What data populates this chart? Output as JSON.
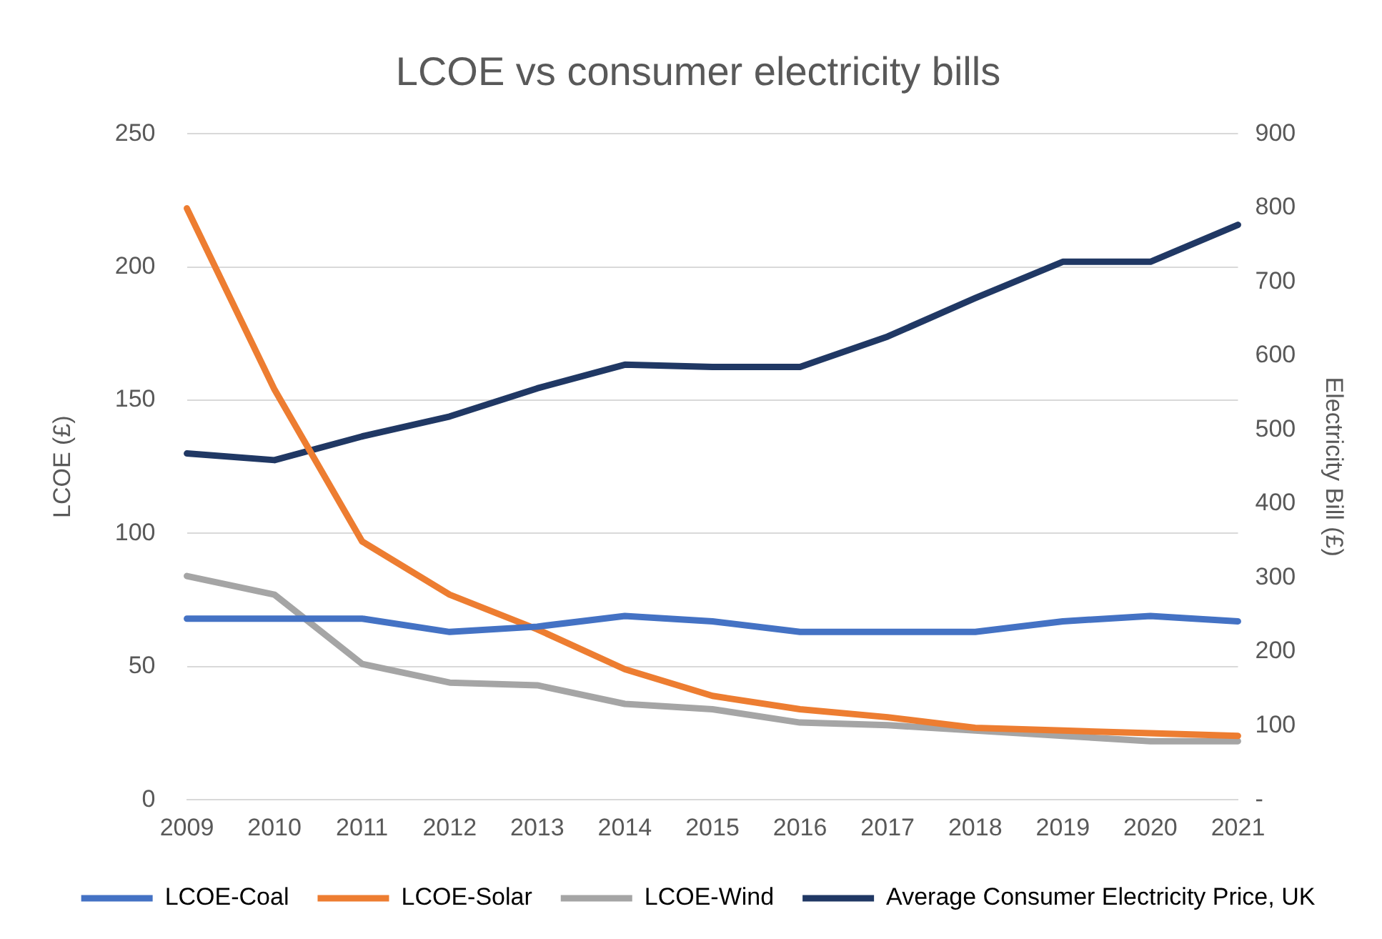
{
  "chart_data": {
    "type": "line",
    "title": "LCOE vs consumer electricity bills",
    "ylabel": "LCOE (£)",
    "y2label": "Electricity Bill (£)",
    "categories": [
      "2009",
      "2010",
      "2011",
      "2012",
      "2013",
      "2014",
      "2015",
      "2016",
      "2017",
      "2018",
      "2019",
      "2020",
      "2021"
    ],
    "series": [
      {
        "name": "LCOE-Coal",
        "color": "#4472c4",
        "values": [
          68,
          68,
          68,
          63,
          65,
          69,
          67,
          63,
          63,
          63,
          67,
          69,
          67
        ]
      },
      {
        "name": "LCOE-Solar",
        "color": "#ed7d31",
        "values": [
          222,
          154,
          97,
          77,
          64,
          49,
          39,
          34,
          31,
          27,
          26,
          25,
          24
        ]
      },
      {
        "name": "LCOE-Wind",
        "color": "#a5a5a5",
        "values": [
          84,
          77,
          51,
          44,
          43,
          36,
          34,
          29,
          28,
          26,
          24,
          22,
          22
        ]
      },
      {
        "name": "Average Consumer Electricity Price, UK",
        "color": "#203864",
        "axis": "y2",
        "values": [
          468,
          459,
          491,
          518,
          556,
          588,
          585,
          585,
          626,
          678,
          727,
          727,
          777
        ]
      }
    ],
    "ylim": [
      0,
      250
    ],
    "yticks": [
      0,
      50,
      100,
      150,
      200,
      250
    ],
    "y2lim": [
      0,
      900
    ],
    "y2ticks": [
      {
        "value": 0,
        "label": "-"
      },
      100,
      200,
      300,
      400,
      500,
      600,
      700,
      800,
      900
    ],
    "grid": "y",
    "legend": "bottom",
    "marker": "none",
    "line_style": "solid"
  }
}
